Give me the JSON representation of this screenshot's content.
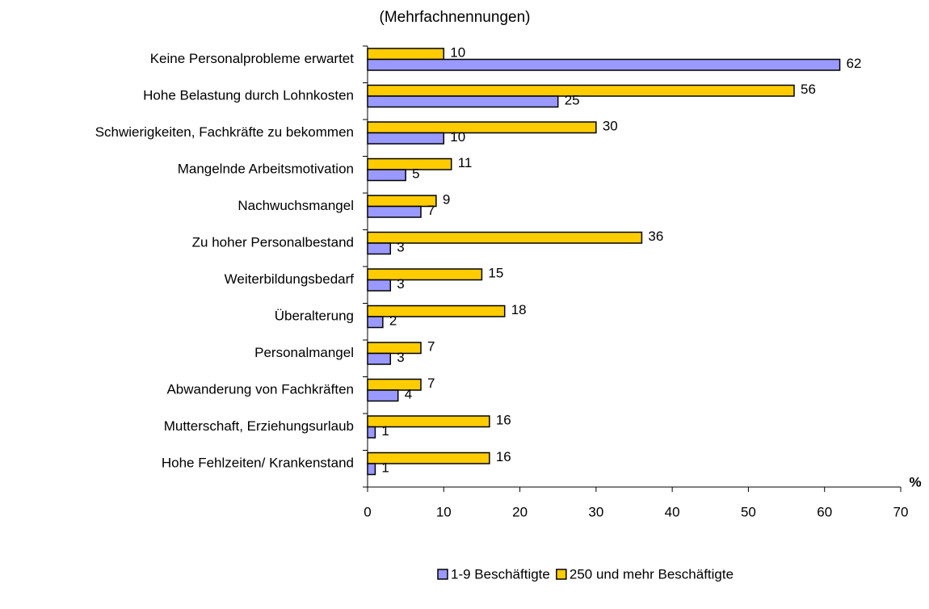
{
  "chart_data": {
    "type": "hbar",
    "title": "(Mehrfachnennungen)",
    "x_label": "%",
    "categories": [
      "Keine Personalprobleme erwartet",
      "Hohe Belastung durch Lohnkosten",
      "Schwierigkeiten, Fachkräfte zu bekommen",
      "Mangelnde Arbeitsmotivation",
      "Nachwuchsmangel",
      "Zu hoher Personalbestand",
      "Weiterbildungsbedarf",
      "Überalterung",
      "Personalmangel",
      "Abwanderung von Fachkräften",
      "Mutterschaft, Erziehungsurlaub",
      "Hohe Fehlzeiten/ Krankenstand"
    ],
    "series": [
      {
        "name": "1-9 Beschäftigte",
        "color": "#9999ff",
        "values": [
          62,
          25,
          10,
          5,
          7,
          3,
          3,
          2,
          3,
          4,
          1,
          1
        ]
      },
      {
        "name": "250 und mehr Beschäftigte",
        "color": "#ffcc00",
        "values": [
          10,
          56,
          30,
          11,
          9,
          36,
          15,
          18,
          7,
          7,
          16,
          16
        ]
      }
    ],
    "xlim": [
      0,
      70
    ],
    "xticks": [
      0,
      10,
      20,
      30,
      40,
      50,
      60,
      70
    ],
    "legend": "bottom"
  }
}
